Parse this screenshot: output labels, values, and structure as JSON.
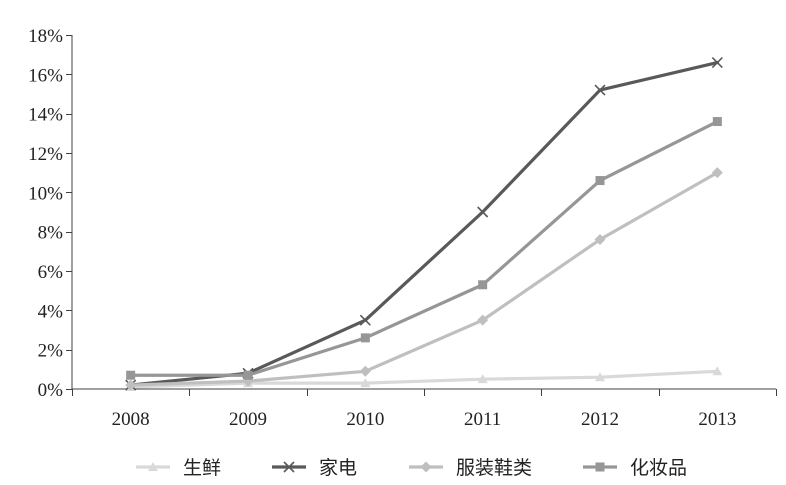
{
  "chart_data": {
    "type": "line",
    "categories": [
      "2008",
      "2009",
      "2010",
      "2011",
      "2012",
      "2013"
    ],
    "series": [
      {
        "name": "生鲜",
        "values": [
          0.1,
          0.3,
          0.3,
          0.5,
          0.6,
          0.9
        ],
        "color": "#d9d9d9",
        "marker": "triangle"
      },
      {
        "name": "家电",
        "values": [
          0.2,
          0.8,
          3.5,
          9.0,
          15.2,
          16.6
        ],
        "color": "#595959",
        "marker": "x"
      },
      {
        "name": "服装鞋类",
        "values": [
          0.2,
          0.4,
          0.9,
          3.5,
          7.6,
          11.0
        ],
        "color": "#bfbfbf",
        "marker": "diamond"
      },
      {
        "name": "化妆品",
        "values": [
          0.7,
          0.7,
          2.6,
          5.3,
          10.6,
          13.6
        ],
        "color": "#969696",
        "marker": "square"
      }
    ],
    "ylim": [
      0,
      18
    ],
    "ytick_values": [
      0,
      2,
      4,
      6,
      8,
      10,
      12,
      14,
      16,
      18
    ],
    "yticks": [
      "0%",
      "2%",
      "4%",
      "6%",
      "8%",
      "10%",
      "12%",
      "14%",
      "16%",
      "18%"
    ],
    "grid": false,
    "legend_position": "bottom"
  }
}
